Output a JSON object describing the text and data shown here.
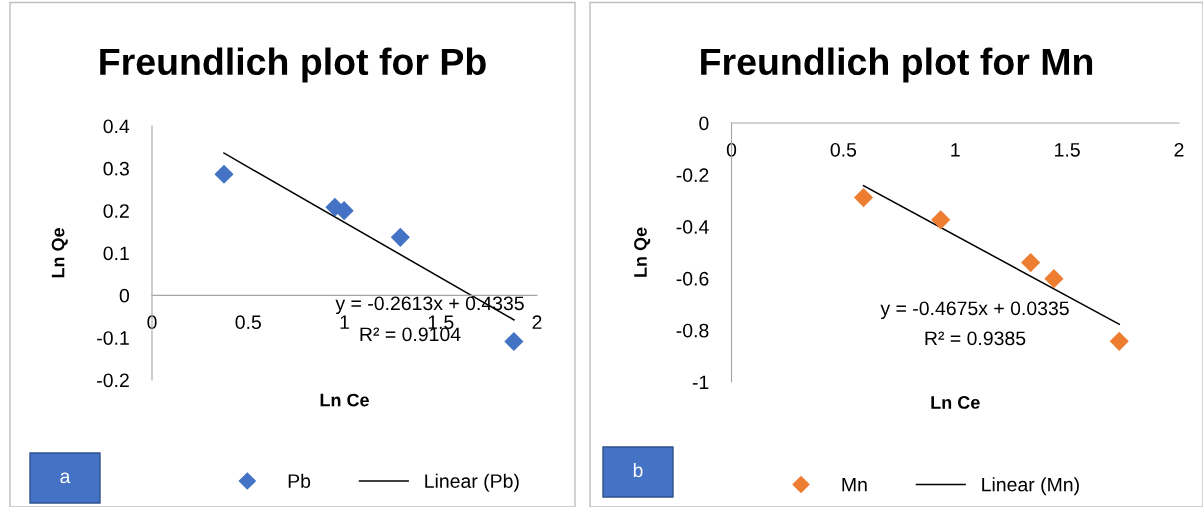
{
  "chart_data": [
    {
      "type": "scatter",
      "title": "Freundlich plot for Pb",
      "xlabel": "Ln Ce",
      "ylabel": "Ln Qe",
      "xlim": [
        0,
        2
      ],
      "ylim": [
        -0.2,
        0.4
      ],
      "xticks": [
        0,
        0.5,
        1,
        1.5,
        2
      ],
      "yticks": [
        -0.2,
        -0.1,
        0,
        0.1,
        0.2,
        0.3,
        0.4
      ],
      "legend": "bottom",
      "series": [
        {
          "name": "Pb",
          "color": "#4472c4",
          "marker": "diamond",
          "x": [
            0.374,
            0.95,
            0.998,
            1.29,
            1.88
          ],
          "values": [
            0.286,
            0.208,
            0.2,
            0.137,
            -0.109
          ]
        },
        {
          "name": "Linear (Pb)",
          "type": "line",
          "color": "#000000",
          "marker": "none",
          "x": [
            0.374,
            1.88
          ],
          "values": [
            0.336,
            -0.058
          ]
        }
      ],
      "annotations": [
        "a",
        "y = -0.2613x + 0.4335",
        "R² = 0.9104"
      ]
    },
    {
      "type": "scatter",
      "title": "Freundlich plot for Mn",
      "xlabel": "Ln Ce",
      "ylabel": "Ln Qe",
      "xlim": [
        0,
        2
      ],
      "ylim": [
        -1,
        0
      ],
      "xticks": [
        0,
        0.5,
        1,
        1.5,
        2
      ],
      "yticks": [
        -1,
        -0.8,
        -0.6,
        -0.4,
        -0.2,
        0
      ],
      "legend": "bottom",
      "series": [
        {
          "name": "Mn",
          "color": "#ed7d31",
          "marker": "diamond",
          "x": [
            0.59,
            0.935,
            1.337,
            1.441,
            1.733
          ],
          "values": [
            -0.288,
            -0.374,
            -0.539,
            -0.601,
            -0.843
          ]
        },
        {
          "name": "Linear (Mn)",
          "type": "line",
          "color": "#000000",
          "marker": "none",
          "x": [
            0.59,
            1.733
          ],
          "values": [
            -0.242,
            -0.777
          ]
        }
      ],
      "annotations": [
        "b",
        "y = -0.4675x + 0.0335",
        "R² = 0.9385"
      ]
    }
  ]
}
